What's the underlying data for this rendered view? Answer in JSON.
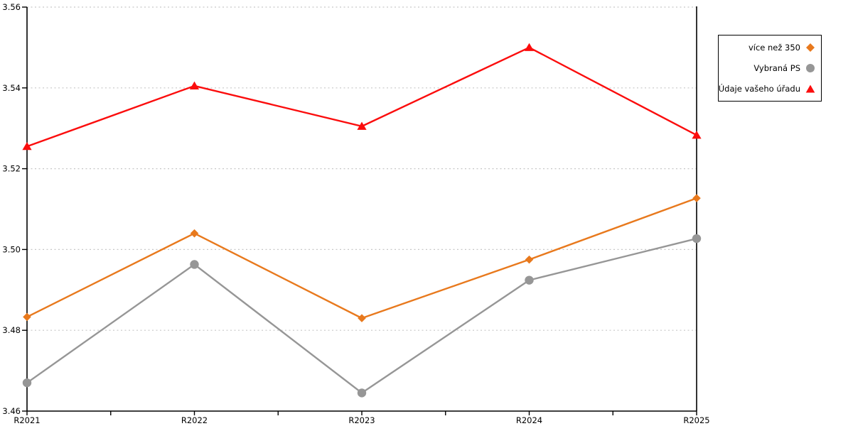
{
  "chart_data": {
    "type": "line",
    "title": "",
    "xlabel": "",
    "ylabel": "",
    "categories": [
      "R2021",
      "R2022",
      "R2023",
      "R2024",
      "R2025"
    ],
    "series": [
      {
        "name": "více než 350",
        "marker": "diamond",
        "color": "#E8791D",
        "values": [
          3.4833,
          3.504,
          3.483,
          3.4975,
          3.5127
        ]
      },
      {
        "name": "Vybraná PS",
        "marker": "circle",
        "color": "#969696",
        "values": [
          3.467,
          3.4963,
          3.4645,
          3.4924,
          3.5027
        ]
      },
      {
        "name": "Údaje vašeho úřadu",
        "marker": "triangle",
        "color": "#FB0D0D",
        "values": [
          3.5255,
          3.5405,
          3.5305,
          3.55,
          3.5283
        ]
      }
    ],
    "ylim": [
      3.46,
      3.56
    ],
    "yticks": [
      3.46,
      3.48,
      3.5,
      3.52,
      3.54,
      3.56
    ],
    "ytick_labels": [
      "3.46",
      "3.48",
      "3.50",
      "3.52",
      "3.54",
      "3.56"
    ],
    "x_minor_ticks": true,
    "grid": "horizontal-dotted",
    "grid_color": "#c7c7c7",
    "axis_color": "#000000",
    "legend_position": "outside-right"
  }
}
